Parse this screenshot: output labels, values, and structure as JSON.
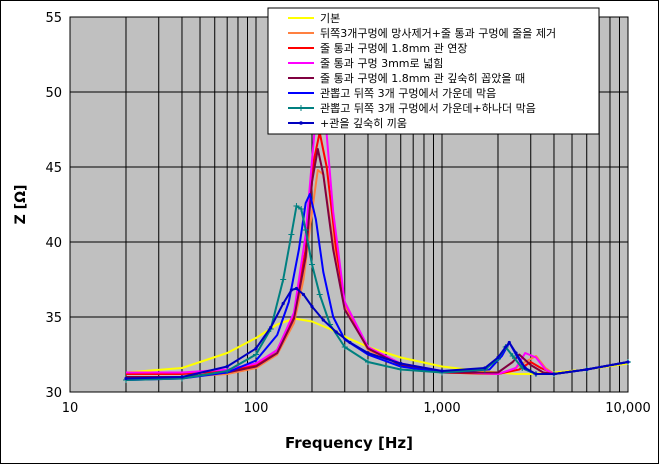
{
  "chart_data": {
    "type": "line",
    "xlabel": "Frequency [Hz]",
    "ylabel": "Z [Ω]",
    "x_scale": "log",
    "xlim": [
      10,
      10000
    ],
    "ylim": [
      30,
      55
    ],
    "xticks": [
      10,
      100,
      1000,
      10000
    ],
    "xtick_labels": [
      "10",
      "100",
      "1,000",
      "10,000"
    ],
    "yticks": [
      30,
      35,
      40,
      45,
      50,
      55
    ],
    "ytick_labels": [
      "30",
      "35",
      "40",
      "45",
      "50",
      "55"
    ],
    "grid": true,
    "plot_background": "#c0c0c0",
    "legend_position": "top-right",
    "series": [
      {
        "name": "기본",
        "color": "#ffff00",
        "marker": "none",
        "x": [
          20,
          40,
          70,
          100,
          130,
          160,
          200,
          250,
          300,
          400,
          600,
          1000,
          1600,
          2000,
          2500,
          3000,
          4000,
          6000,
          10000
        ],
        "y": [
          31.3,
          31.6,
          32.6,
          33.6,
          34.5,
          34.9,
          34.7,
          34.2,
          33.7,
          33.0,
          32.3,
          31.7,
          31.4,
          31.3,
          31.2,
          31.2,
          31.3,
          31.5,
          31.9
        ]
      },
      {
        "name": "뒤쪽3개구멍에 망사제거+줄 통과 구멍에 줄을 제거",
        "color": "#ff8040",
        "marker": "none",
        "x": [
          20,
          40,
          70,
          100,
          130,
          160,
          180,
          200,
          215,
          230,
          260,
          300,
          400,
          600,
          1000,
          2000,
          2400,
          2800,
          3200,
          3600,
          4000,
          6000,
          10000
        ],
        "y": [
          31.0,
          31.0,
          31.2,
          31.6,
          32.5,
          34.6,
          37.5,
          42.0,
          44.8,
          44.5,
          40.0,
          35.8,
          32.8,
          31.8,
          31.3,
          31.2,
          31.5,
          32.0,
          32.4,
          31.6,
          31.2,
          31.5,
          32.0
        ]
      },
      {
        "name": "줄 통과 구멍에 1.8mm 관 연장",
        "color": "#ff0000",
        "marker": "none",
        "x": [
          20,
          40,
          70,
          100,
          130,
          160,
          185,
          205,
          220,
          240,
          270,
          300,
          400,
          600,
          1000,
          2000,
          2600,
          3000,
          3400,
          3700,
          4000,
          6000,
          10000
        ],
        "y": [
          31.2,
          31.2,
          31.4,
          31.8,
          32.8,
          35.2,
          39.5,
          45.5,
          47.3,
          45.0,
          39.5,
          36.0,
          32.9,
          31.8,
          31.3,
          31.2,
          31.5,
          32.0,
          31.6,
          31.4,
          31.2,
          31.5,
          32.0
        ]
      },
      {
        "name": "줄 통과 구멍 3mm로 넓힘",
        "color": "#ff00ff",
        "marker": "none",
        "x": [
          20,
          40,
          70,
          100,
          130,
          160,
          185,
          205,
          220,
          235,
          260,
          300,
          400,
          600,
          1000,
          2000,
          2500,
          2800,
          3200,
          3600,
          4000,
          6000,
          10000
        ],
        "y": [
          31.3,
          31.3,
          31.5,
          31.9,
          32.8,
          35.3,
          40.5,
          47.0,
          50.8,
          48.5,
          42.0,
          36.0,
          33.0,
          31.9,
          31.4,
          31.2,
          31.6,
          32.6,
          32.3,
          31.5,
          31.2,
          31.5,
          32.0
        ]
      },
      {
        "name": "줄 통과 구멍에 1.8mm 관 깊숙히 꼽았을 때",
        "color": "#800040",
        "marker": "none",
        "x": [
          20,
          40,
          70,
          100,
          130,
          160,
          185,
          200,
          215,
          230,
          260,
          300,
          400,
          600,
          1000,
          2000,
          2400,
          2600,
          3000,
          3500,
          4000,
          6000,
          10000
        ],
        "y": [
          31.0,
          31.0,
          31.3,
          31.7,
          32.6,
          34.9,
          39.0,
          44.0,
          46.2,
          44.5,
          39.5,
          35.5,
          32.9,
          31.8,
          31.3,
          31.3,
          32.0,
          32.5,
          31.8,
          31.3,
          31.2,
          31.5,
          32.0
        ]
      },
      {
        "name": "관뽑고 뒤쪽 3개 구멍에서 가운데 막음",
        "color": "#0000ff",
        "marker": "none",
        "x": [
          20,
          40,
          70,
          100,
          130,
          150,
          170,
          185,
          195,
          210,
          230,
          260,
          300,
          400,
          600,
          1000,
          1800,
          2100,
          2300,
          2500,
          2800,
          3200,
          4000,
          6000,
          10000
        ],
        "y": [
          30.8,
          30.9,
          31.3,
          32.1,
          33.8,
          36.0,
          39.5,
          42.6,
          43.2,
          41.5,
          38.0,
          35.0,
          33.5,
          32.5,
          31.7,
          31.3,
          31.5,
          32.4,
          33.3,
          32.5,
          31.5,
          31.2,
          31.2,
          31.5,
          32.0
        ]
      },
      {
        "name": "관뽑고 뒤쪽 3개 구멍에서 가운데+하나더 막음",
        "color": "#008080",
        "marker": "plus",
        "x": [
          20,
          40,
          70,
          100,
          120,
          140,
          155,
          165,
          175,
          185,
          200,
          220,
          250,
          300,
          400,
          600,
          1000,
          1700,
          2000,
          2200,
          2400,
          2700,
          3200,
          4000,
          6000,
          10000
        ],
        "y": [
          30.8,
          30.9,
          31.4,
          32.5,
          34.2,
          37.5,
          40.5,
          42.4,
          42.2,
          40.8,
          38.5,
          36.5,
          34.5,
          33.0,
          32.0,
          31.5,
          31.3,
          31.5,
          32.2,
          33.0,
          32.4,
          31.6,
          31.2,
          31.2,
          31.5,
          32.0
        ]
      },
      {
        "name": "+관을 깊숙히 끼움",
        "color": "#0000c0",
        "marker": "dot",
        "x": [
          20,
          40,
          70,
          100,
          120,
          140,
          155,
          165,
          180,
          200,
          230,
          270,
          320,
          400,
          600,
          1000,
          1700,
          2000,
          2200,
          2300,
          2500,
          2800,
          3200,
          4000,
          6000,
          10000
        ],
        "y": [
          30.9,
          31.0,
          31.7,
          32.9,
          34.3,
          35.9,
          36.8,
          36.9,
          36.5,
          35.7,
          34.8,
          34.0,
          33.3,
          32.6,
          31.9,
          31.4,
          31.6,
          32.3,
          33.0,
          33.3,
          32.6,
          31.6,
          31.2,
          31.2,
          31.5,
          32.0
        ]
      }
    ]
  }
}
